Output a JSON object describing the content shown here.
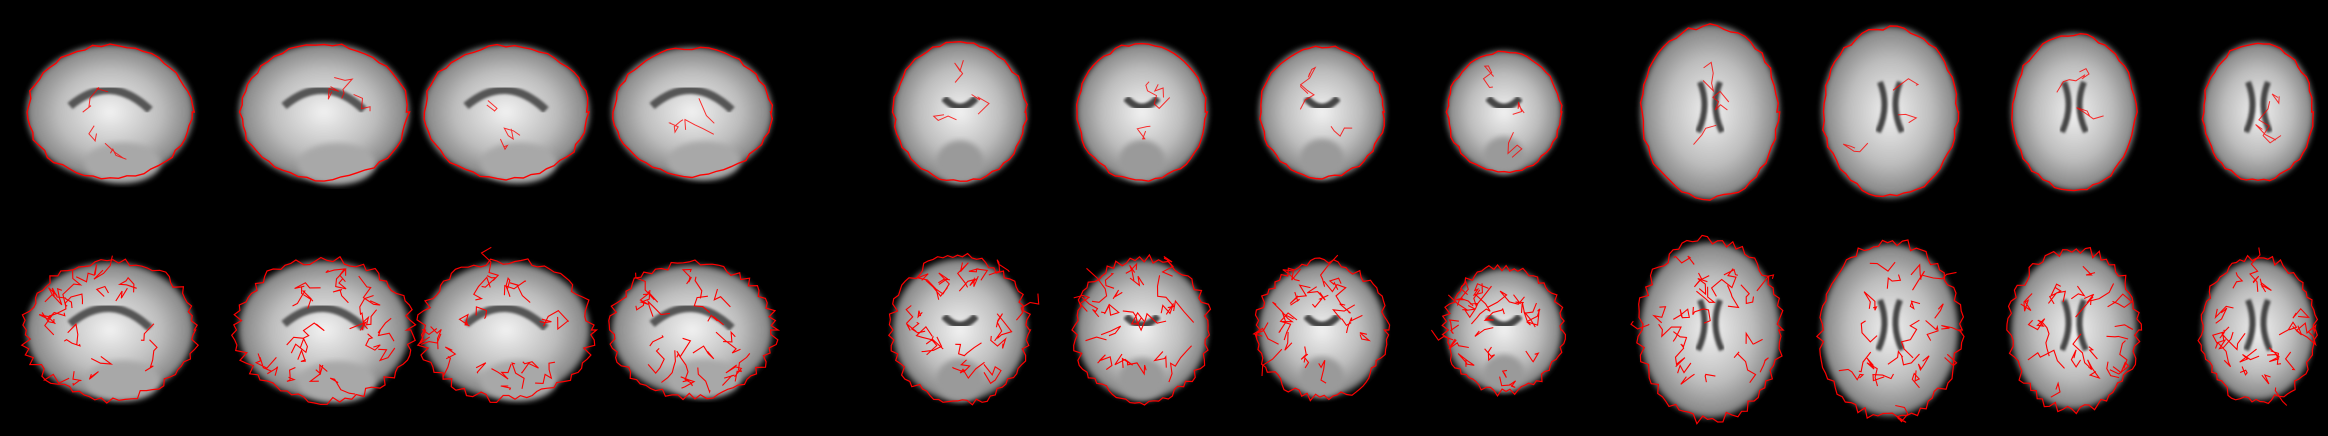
{
  "figure": {
    "background": "#000000",
    "contour_color": "#ff0000",
    "rows": [
      {
        "overlay": "brain-outline",
        "slices": [
          {
            "view": "sagittal"
          },
          {
            "view": "sagittal"
          },
          {
            "view": "sagittal"
          },
          {
            "view": "sagittal"
          },
          {
            "view": "coronal"
          },
          {
            "view": "coronal"
          },
          {
            "view": "coronal"
          },
          {
            "view": "coronal"
          },
          {
            "view": "axial"
          },
          {
            "view": "axial"
          },
          {
            "view": "axial"
          },
          {
            "view": "axial"
          }
        ]
      },
      {
        "overlay": "cortical-surface-contours",
        "slices": [
          {
            "view": "sagittal"
          },
          {
            "view": "sagittal"
          },
          {
            "view": "sagittal"
          },
          {
            "view": "sagittal"
          },
          {
            "view": "coronal"
          },
          {
            "view": "coronal"
          },
          {
            "view": "coronal"
          },
          {
            "view": "coronal"
          },
          {
            "view": "axial"
          },
          {
            "view": "axial"
          },
          {
            "view": "axial"
          },
          {
            "view": "axial"
          }
        ]
      }
    ]
  }
}
